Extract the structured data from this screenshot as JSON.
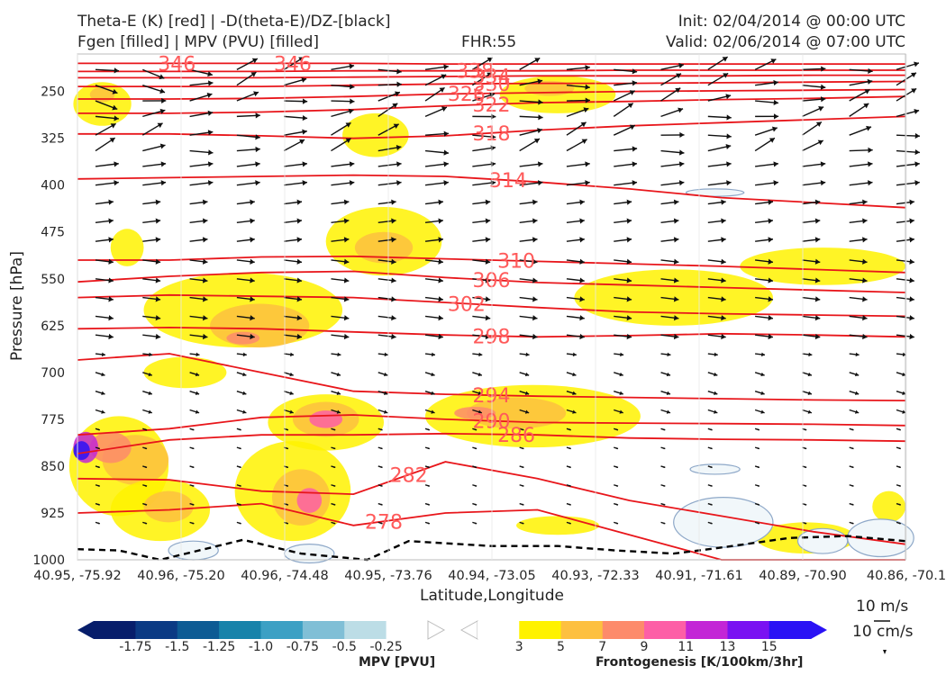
{
  "header": {
    "title_line1": "Theta-E (K) [red] | -D(theta-E)/DZ-[black]",
    "title_line2": "Fgen [filled] | MPV (PVU) [filled]",
    "fhr": "FHR:55",
    "init": "Init: 02/04/2014 @ 00:00 UTC",
    "valid": "Valid: 02/06/2014 @ 07:00 UTC"
  },
  "chart_data": {
    "type": "cross-section",
    "ylabel": "Pressure [hPa]",
    "xlabel": "Latitude,Longitude",
    "y_ticks": [
      250,
      325,
      400,
      475,
      550,
      625,
      700,
      775,
      850,
      925,
      1000
    ],
    "ylim": [
      1000,
      190
    ],
    "x_ticks": [
      "40.95, -75.92",
      "40.96, -75.20",
      "40.96, -74.48",
      "40.95, -73.76",
      "40.94, -73.05",
      "40.93, -72.33",
      "40.91, -71.61",
      "40.89, -70.90",
      "40.86, -70.1"
    ],
    "theta_e_contours": [
      {
        "label": "346",
        "p": [
          205,
          205,
          205,
          205,
          206,
          206,
          206,
          206,
          206,
          206
        ]
      },
      {
        "label": "338",
        "p": [
          218,
          218,
          218,
          217,
          217,
          217,
          216,
          216,
          216,
          216
        ]
      },
      {
        "label": "334",
        "p": [
          228,
          228,
          228,
          227,
          226,
          225,
          225,
          225,
          224,
          224
        ]
      },
      {
        "label": "330",
        "p": [
          242,
          242,
          242,
          240,
          238,
          237,
          237,
          236,
          235,
          234
        ]
      },
      {
        "label": "326",
        "p": [
          262,
          262,
          261,
          258,
          254,
          252,
          250,
          249,
          248,
          247
        ]
      },
      {
        "label": "322",
        "p": [
          285,
          285,
          283,
          279,
          273,
          268,
          266,
          263,
          261,
          258
        ]
      },
      {
        "label": "318",
        "p": [
          318,
          318,
          321,
          325,
          321,
          312,
          305,
          300,
          295,
          290
        ]
      },
      {
        "label": "314",
        "p": [
          390,
          388,
          386,
          384,
          386,
          395,
          406,
          420,
          428,
          436
        ]
      },
      {
        "label": "310",
        "p": [
          520,
          520,
          515,
          514,
          518,
          522,
          526,
          530,
          535,
          540
        ]
      },
      {
        "label": "306",
        "p": [
          555,
          546,
          540,
          538,
          548,
          556,
          560,
          564,
          568,
          572
        ]
      },
      {
        "label": "302",
        "p": [
          580,
          576,
          578,
          580,
          588,
          596,
          603,
          606,
          608,
          610
        ]
      },
      {
        "label": "298",
        "p": [
          630,
          628,
          630,
          635,
          640,
          643,
          641,
          638,
          640,
          643
        ]
      },
      {
        "label": "294",
        "p": [
          680,
          670,
          700,
          730,
          735,
          738,
          740,
          742,
          744,
          745
        ]
      },
      {
        "label": "290",
        "p": [
          800,
          790,
          772,
          768,
          775,
          780,
          781,
          782,
          783,
          785
        ]
      },
      {
        "label": "286",
        "p": [
          830,
          808,
          800,
          800,
          798,
          800,
          805,
          807,
          808,
          810
        ]
      },
      {
        "label": "282",
        "p": [
          870,
          872,
          890,
          895,
          843,
          870,
          905,
          930,
          955,
          975
        ]
      },
      {
        "label": "278",
        "p": [
          925,
          920,
          910,
          945,
          925,
          920,
          960,
          1000,
          1000,
          1000
        ]
      }
    ],
    "vertical_advection_zero_line": [
      {
        "x": 0,
        "p": 983
      },
      {
        "x": 0.05,
        "p": 985
      },
      {
        "x": 0.1,
        "p": 1000
      },
      {
        "x": 0.2,
        "p": 968
      },
      {
        "x": 0.27,
        "p": 990
      },
      {
        "x": 0.35,
        "p": 1000
      },
      {
        "x": 0.4,
        "p": 970
      },
      {
        "x": 0.5,
        "p": 978
      },
      {
        "x": 0.58,
        "p": 978
      },
      {
        "x": 0.65,
        "p": 985
      },
      {
        "x": 0.72,
        "p": 990
      },
      {
        "x": 0.78,
        "p": 980
      },
      {
        "x": 0.86,
        "p": 965
      },
      {
        "x": 0.93,
        "p": 962
      },
      {
        "x": 1.0,
        "p": 970
      }
    ],
    "mpv_colorbar": {
      "label": "MPV [PVU]",
      "ticks": [
        "-1.75",
        "-1.5",
        "-1.25",
        "-1.0",
        "-0.75",
        "-0.5",
        "-0.25"
      ],
      "colors": [
        "#071e6b",
        "#0b3a84",
        "#0d5b94",
        "#1783aa",
        "#3ca0c4",
        "#80bfd6",
        "#bcdde6",
        "#ffffff"
      ]
    },
    "fgen_colorbar": {
      "label": "Frontogenesis [K/100km/3hr]",
      "ticks": [
        "3",
        "5",
        "7",
        "9",
        "11",
        "13",
        "15"
      ],
      "colors": [
        "#ffffff",
        "#fff200",
        "#fdc040",
        "#fd8b6b",
        "#fd5fa6",
        "#c326d6",
        "#7a12f2",
        "#2a12f5"
      ]
    },
    "wind_key": {
      "speed_label": "10 m/s",
      "vertical_label": "10 cm/s"
    }
  }
}
